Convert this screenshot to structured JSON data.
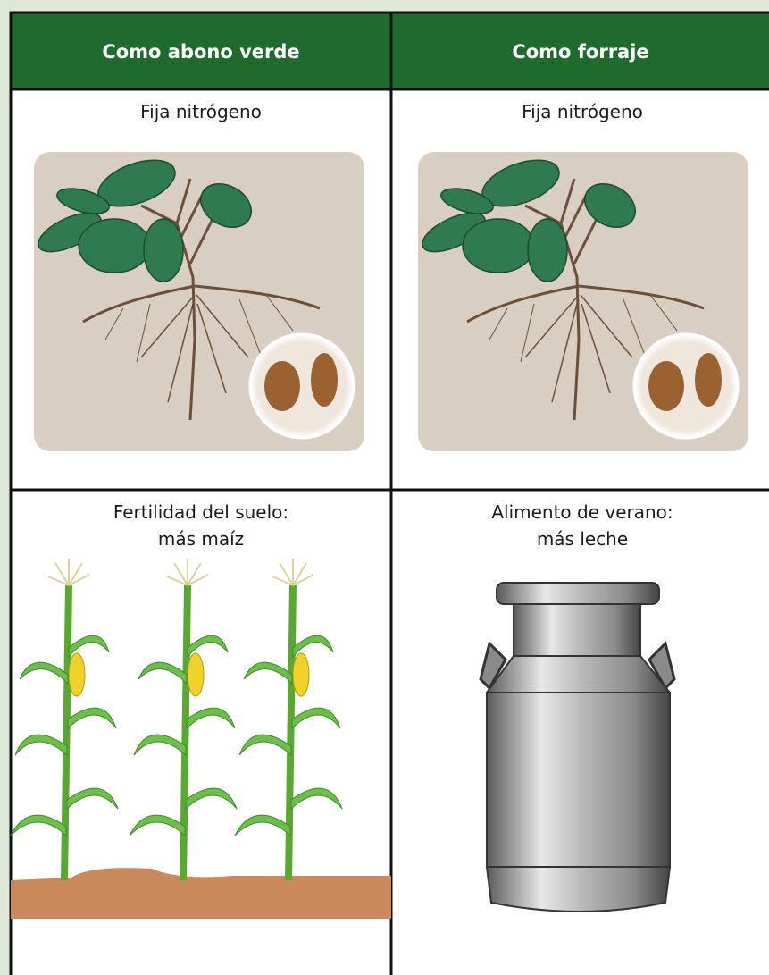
{
  "table": {
    "header": [
      "Como abono verde",
      "Como forraje"
    ],
    "rows": [
      [
        [
          "Fija nitrógeno"
        ],
        [
          "Fija nitrógeno"
        ]
      ],
      [
        [
          "Fertilidad del suelo:",
          "más maíz"
        ],
        [
          "Alimento de verano:",
          "más leche"
        ]
      ]
    ]
  }
}
